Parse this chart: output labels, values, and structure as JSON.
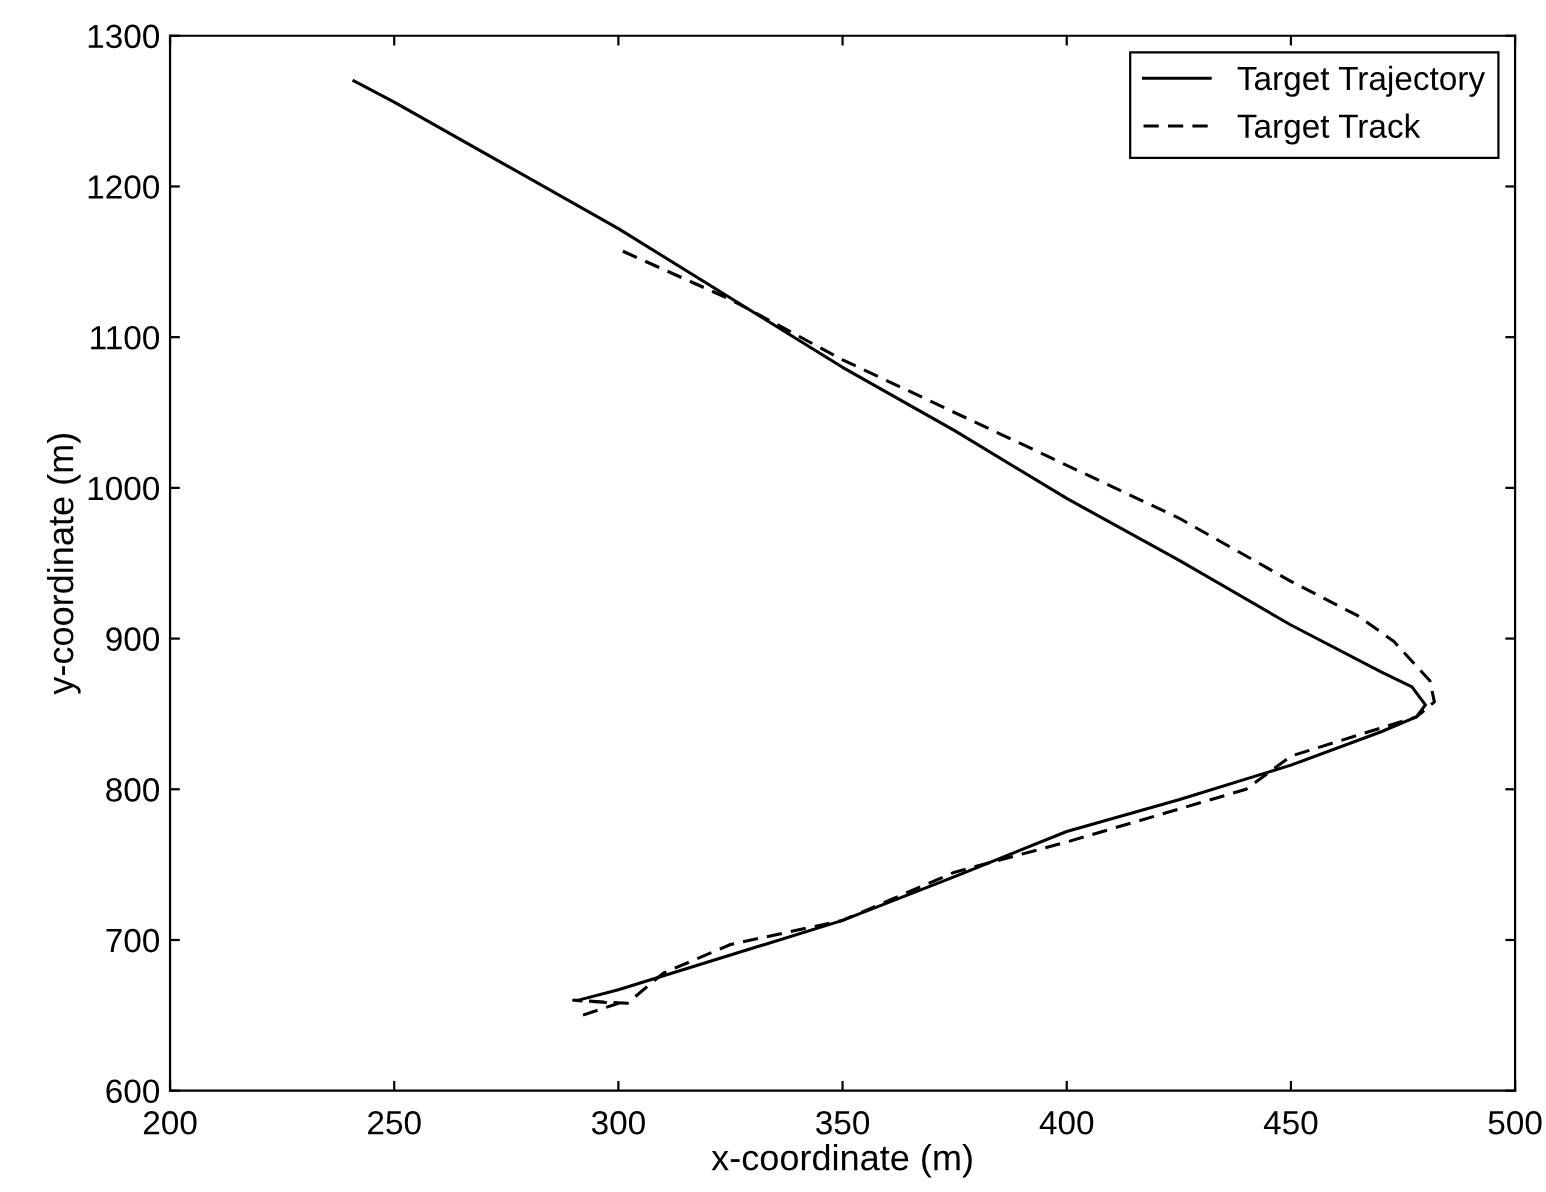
{
  "chart_data": {
    "type": "line",
    "xlabel": "x-coordinate (m)",
    "ylabel": "y-coordinate (m)",
    "xlim": [
      200,
      500
    ],
    "ylim": [
      600,
      1300
    ],
    "xticks": [
      200,
      250,
      300,
      350,
      400,
      450,
      500
    ],
    "yticks": [
      600,
      700,
      800,
      900,
      1000,
      1100,
      1200,
      1300
    ],
    "grid": false,
    "legend": "top right",
    "marker": "none",
    "series": [
      {
        "name": "Target Trajectory",
        "color": "#000000",
        "line_style": "solid",
        "x": [
          241,
          250,
          275,
          300,
          325,
          350,
          375,
          400,
          425,
          450,
          470,
          477,
          480,
          478,
          470,
          450,
          425,
          400,
          375,
          350,
          325,
          300,
          291
        ],
        "values": [
          1270,
          1256,
          1214,
          1172,
          1126,
          1080,
          1038,
          993,
          952,
          909,
          878,
          868,
          856,
          848,
          838,
          816,
          793,
          772,
          742,
          713,
          690,
          667,
          660
        ]
      },
      {
        "name": "Target Track",
        "color": "#000000",
        "line_style": "dashed",
        "x": [
          301,
          325,
          350,
          375,
          400,
          425,
          450,
          465,
          473,
          481,
          482,
          478,
          450,
          440,
          400,
          375,
          350,
          325,
          310,
          302,
          290,
          300,
          292
        ],
        "values": [
          1157,
          1125,
          1085,
          1050,
          1015,
          980,
          938,
          915,
          898,
          872,
          858,
          848,
          822,
          800,
          765,
          745,
          713,
          697,
          678,
          658,
          660,
          658,
          650
        ]
      }
    ]
  }
}
